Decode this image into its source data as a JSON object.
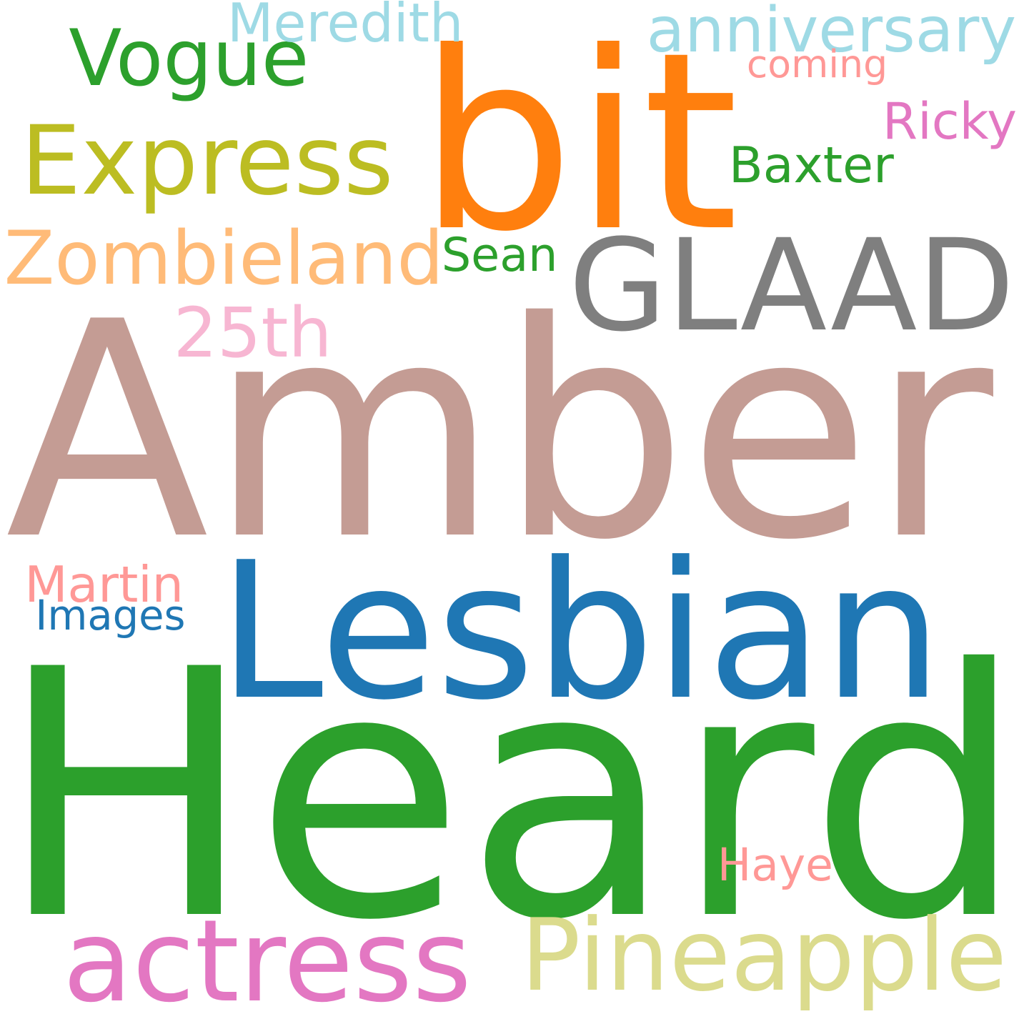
{
  "words": [
    {
      "key": "amber",
      "text": "Amber",
      "color": "#c49c94"
    },
    {
      "key": "heard",
      "text": "Heard",
      "color": "#2ca02c"
    },
    {
      "key": "lesbian",
      "text": "Lesbian",
      "color": "#1f77b4"
    },
    {
      "key": "bit",
      "text": "bit",
      "color": "#ff7f0e"
    },
    {
      "key": "glaad",
      "text": "GLAAD",
      "color": "#7f7f7f"
    },
    {
      "key": "actress",
      "text": "actress",
      "color": "#e377c2"
    },
    {
      "key": "pineapple",
      "text": "Pineapple",
      "color": "#dbdb8d"
    },
    {
      "key": "express",
      "text": "Express",
      "color": "#bcbd22"
    },
    {
      "key": "vogue",
      "text": "Vogue",
      "color": "#2ca02c"
    },
    {
      "key": "zombieland",
      "text": "Zombieland",
      "color": "#ffbb78"
    },
    {
      "key": "anniversary",
      "text": "anniversary",
      "color": "#9edae5"
    },
    {
      "key": "meredith",
      "text": "Meredith",
      "color": "#9edae5"
    },
    {
      "key": "25th",
      "text": "25th",
      "color": "#f7b6d2"
    },
    {
      "key": "coming",
      "text": "coming",
      "color": "#ff9896"
    },
    {
      "key": "ricky",
      "text": "Ricky",
      "color": "#e377c2"
    },
    {
      "key": "baxter",
      "text": "Baxter",
      "color": "#2ca02c"
    },
    {
      "key": "sean",
      "text": "Sean",
      "color": "#2ca02c"
    },
    {
      "key": "martin",
      "text": "Martin",
      "color": "#ff9896"
    },
    {
      "key": "images",
      "text": "Images",
      "color": "#1f77b4"
    },
    {
      "key": "haye",
      "text": "Haye",
      "color": "#ff9896"
    }
  ]
}
